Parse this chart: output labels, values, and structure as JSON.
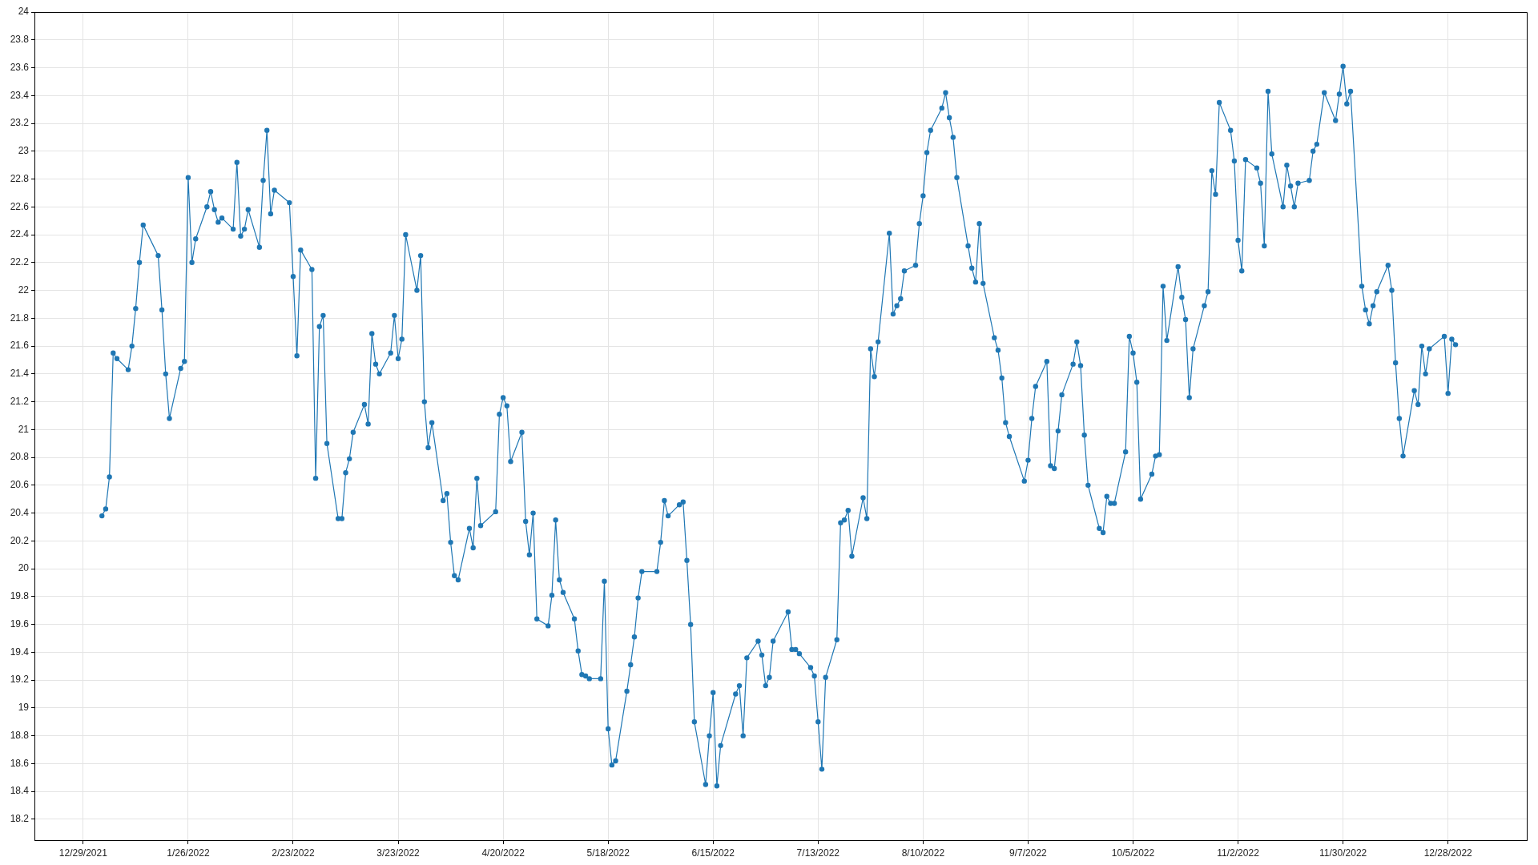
{
  "chart_data": {
    "type": "line",
    "marker": "circle",
    "grid": true,
    "color": "#1f77b4",
    "xlim": [
      "2021-12-16",
      "2023-01-18"
    ],
    "xticks": [
      {
        "value": "2021-12-29",
        "label": "12/29/2021"
      },
      {
        "value": "2022-01-26",
        "label": "1/26/2022"
      },
      {
        "value": "2022-02-23",
        "label": "2/23/2022"
      },
      {
        "value": "2022-03-23",
        "label": "3/23/2022"
      },
      {
        "value": "2022-04-20",
        "label": "4/20/2022"
      },
      {
        "value": "2022-05-18",
        "label": "5/18/2022"
      },
      {
        "value": "2022-06-15",
        "label": "6/15/2022"
      },
      {
        "value": "2022-07-13",
        "label": "7/13/2022"
      },
      {
        "value": "2022-08-10",
        "label": "8/10/2022"
      },
      {
        "value": "2022-09-07",
        "label": "9/7/2022"
      },
      {
        "value": "2022-10-05",
        "label": "10/5/2022"
      },
      {
        "value": "2022-11-02",
        "label": "11/2/2022"
      },
      {
        "value": "2022-11-30",
        "label": "11/30/2022"
      },
      {
        "value": "2022-12-28",
        "label": "12/28/2022"
      }
    ],
    "ylim": [
      18.05,
      24
    ],
    "yticks": [
      18.2,
      18.4,
      18.6,
      18.8,
      19,
      19.2,
      19.4,
      19.6,
      19.8,
      20,
      20.2,
      20.4,
      20.6,
      20.8,
      21,
      21.2,
      21.4,
      21.6,
      21.8,
      22,
      22.2,
      22.4,
      22.6,
      22.8,
      23,
      23.2,
      23.4,
      23.6,
      23.8,
      24
    ],
    "x": [
      "2022-01-03",
      "2022-01-04",
      "2022-01-05",
      "2022-01-06",
      "2022-01-07",
      "2022-01-10",
      "2022-01-11",
      "2022-01-12",
      "2022-01-13",
      "2022-01-14",
      "2022-01-18",
      "2022-01-19",
      "2022-01-20",
      "2022-01-21",
      "2022-01-24",
      "2022-01-25",
      "2022-01-26",
      "2022-01-27",
      "2022-01-28",
      "2022-01-31",
      "2022-02-01",
      "2022-02-02",
      "2022-02-03",
      "2022-02-04",
      "2022-02-07",
      "2022-02-08",
      "2022-02-09",
      "2022-02-10",
      "2022-02-11",
      "2022-02-14",
      "2022-02-15",
      "2022-02-16",
      "2022-02-17",
      "2022-02-18",
      "2022-02-22",
      "2022-02-23",
      "2022-02-24",
      "2022-02-25",
      "2022-02-28",
      "2022-03-01",
      "2022-03-02",
      "2022-03-03",
      "2022-03-04",
      "2022-03-07",
      "2022-03-08",
      "2022-03-09",
      "2022-03-10",
      "2022-03-11",
      "2022-03-14",
      "2022-03-15",
      "2022-03-16",
      "2022-03-17",
      "2022-03-18",
      "2022-03-21",
      "2022-03-22",
      "2022-03-23",
      "2022-03-24",
      "2022-03-25",
      "2022-03-28",
      "2022-03-29",
      "2022-03-30",
      "2022-03-31",
      "2022-04-01",
      "2022-04-04",
      "2022-04-05",
      "2022-04-06",
      "2022-04-07",
      "2022-04-08",
      "2022-04-11",
      "2022-04-12",
      "2022-04-13",
      "2022-04-14",
      "2022-04-18",
      "2022-04-19",
      "2022-04-20",
      "2022-04-21",
      "2022-04-22",
      "2022-04-25",
      "2022-04-26",
      "2022-04-27",
      "2022-04-28",
      "2022-04-29",
      "2022-05-02",
      "2022-05-03",
      "2022-05-04",
      "2022-05-05",
      "2022-05-06",
      "2022-05-09",
      "2022-05-10",
      "2022-05-11",
      "2022-05-12",
      "2022-05-13",
      "2022-05-16",
      "2022-05-17",
      "2022-05-18",
      "2022-05-19",
      "2022-05-20",
      "2022-05-23",
      "2022-05-24",
      "2022-05-25",
      "2022-05-26",
      "2022-05-27",
      "2022-05-31",
      "2022-06-01",
      "2022-06-02",
      "2022-06-03",
      "2022-06-06",
      "2022-06-07",
      "2022-06-08",
      "2022-06-09",
      "2022-06-10",
      "2022-06-13",
      "2022-06-14",
      "2022-06-15",
      "2022-06-16",
      "2022-06-17",
      "2022-06-21",
      "2022-06-22",
      "2022-06-23",
      "2022-06-24",
      "2022-06-27",
      "2022-06-28",
      "2022-06-29",
      "2022-06-30",
      "2022-07-01",
      "2022-07-05",
      "2022-07-06",
      "2022-07-07",
      "2022-07-08",
      "2022-07-11",
      "2022-07-12",
      "2022-07-13",
      "2022-07-14",
      "2022-07-15",
      "2022-07-18",
      "2022-07-19",
      "2022-07-20",
      "2022-07-21",
      "2022-07-22",
      "2022-07-25",
      "2022-07-26",
      "2022-07-27",
      "2022-07-28",
      "2022-07-29",
      "2022-08-01",
      "2022-08-02",
      "2022-08-03",
      "2022-08-04",
      "2022-08-05",
      "2022-08-08",
      "2022-08-09",
      "2022-08-10",
      "2022-08-11",
      "2022-08-12",
      "2022-08-15",
      "2022-08-16",
      "2022-08-17",
      "2022-08-18",
      "2022-08-19",
      "2022-08-22",
      "2022-08-23",
      "2022-08-24",
      "2022-08-25",
      "2022-08-26",
      "2022-08-29",
      "2022-08-30",
      "2022-08-31",
      "2022-09-01",
      "2022-09-02",
      "2022-09-06",
      "2022-09-07",
      "2022-09-08",
      "2022-09-09",
      "2022-09-12",
      "2022-09-13",
      "2022-09-14",
      "2022-09-15",
      "2022-09-16",
      "2022-09-19",
      "2022-09-20",
      "2022-09-21",
      "2022-09-22",
      "2022-09-23",
      "2022-09-26",
      "2022-09-27",
      "2022-09-28",
      "2022-09-29",
      "2022-09-30",
      "2022-10-03",
      "2022-10-04",
      "2022-10-05",
      "2022-10-06",
      "2022-10-07",
      "2022-10-10",
      "2022-10-11",
      "2022-10-12",
      "2022-10-13",
      "2022-10-14",
      "2022-10-17",
      "2022-10-18",
      "2022-10-19",
      "2022-10-20",
      "2022-10-21",
      "2022-10-24",
      "2022-10-25",
      "2022-10-26",
      "2022-10-27",
      "2022-10-28",
      "2022-10-31",
      "2022-11-01",
      "2022-11-02",
      "2022-11-03",
      "2022-11-04",
      "2022-11-07",
      "2022-11-08",
      "2022-11-09",
      "2022-11-10",
      "2022-11-11",
      "2022-11-14",
      "2022-11-15",
      "2022-11-16",
      "2022-11-17",
      "2022-11-18",
      "2022-11-21",
      "2022-11-22",
      "2022-11-23",
      "2022-11-25",
      "2022-11-28",
      "2022-11-29",
      "2022-11-30",
      "2022-12-01",
      "2022-12-02",
      "2022-12-05",
      "2022-12-06",
      "2022-12-07",
      "2022-12-08",
      "2022-12-09",
      "2022-12-12",
      "2022-12-13",
      "2022-12-14",
      "2022-12-15",
      "2022-12-16",
      "2022-12-19",
      "2022-12-20",
      "2022-12-21",
      "2022-12-22",
      "2022-12-23",
      "2022-12-27",
      "2022-12-28",
      "2022-12-29",
      "2022-12-30"
    ],
    "values": [
      20.38,
      20.43,
      20.66,
      21.55,
      21.51,
      21.43,
      21.6,
      21.87,
      22.2,
      22.47,
      22.25,
      21.86,
      21.4,
      21.08,
      21.44,
      21.49,
      22.81,
      22.2,
      22.37,
      22.6,
      22.71,
      22.58,
      22.49,
      22.52,
      22.44,
      22.92,
      22.39,
      22.44,
      22.58,
      22.31,
      22.79,
      23.15,
      22.55,
      22.72,
      22.63,
      22.1,
      21.53,
      22.29,
      22.15,
      20.65,
      21.74,
      21.82,
      20.9,
      20.36,
      20.36,
      20.69,
      20.79,
      20.98,
      21.18,
      21.04,
      21.69,
      21.47,
      21.4,
      21.55,
      21.82,
      21.51,
      21.65,
      22.4,
      22.0,
      22.25,
      21.2,
      20.87,
      21.05,
      20.49,
      20.54,
      20.19,
      19.95,
      19.92,
      20.29,
      20.15,
      20.65,
      20.31,
      20.41,
      21.11,
      21.23,
      21.17,
      20.77,
      20.98,
      20.34,
      20.1,
      20.4,
      19.64,
      19.59,
      19.81,
      20.35,
      19.92,
      19.83,
      19.64,
      19.41,
      19.24,
      19.23,
      19.21,
      19.21,
      19.91,
      18.85,
      18.59,
      18.62,
      19.12,
      19.31,
      19.51,
      19.79,
      19.98,
      19.98,
      20.19,
      20.49,
      20.38,
      20.46,
      20.48,
      20.06,
      19.6,
      18.9,
      18.45,
      18.8,
      19.11,
      18.44,
      18.73,
      19.1,
      19.16,
      18.8,
      19.36,
      19.48,
      19.38,
      19.16,
      19.22,
      19.48,
      19.69,
      19.42,
      19.42,
      19.39,
      19.29,
      19.23,
      18.9,
      18.56,
      19.22,
      19.49,
      20.33,
      20.35,
      20.42,
      20.09,
      20.51,
      20.36,
      21.58,
      21.38,
      21.63,
      22.41,
      21.83,
      21.89,
      21.94,
      22.14,
      22.18,
      22.48,
      22.68,
      22.99,
      23.15,
      23.31,
      23.42,
      23.24,
      23.1,
      22.81,
      22.32,
      22.16,
      22.06,
      22.48,
      22.05,
      21.66,
      21.57,
      21.37,
      21.05,
      20.95,
      20.63,
      20.78,
      21.08,
      21.31,
      21.49,
      20.74,
      20.72,
      20.99,
      21.25,
      21.47,
      21.63,
      21.46,
      20.96,
      20.6,
      20.29,
      20.26,
      20.52,
      20.47,
      20.47,
      20.84,
      21.67,
      21.55,
      21.34,
      20.5,
      20.68,
      20.81,
      20.82,
      22.03,
      21.64,
      22.17,
      21.95,
      21.79,
      21.23,
      21.58,
      21.89,
      21.99,
      22.86,
      22.69,
      23.35,
      23.15,
      22.93,
      22.36,
      22.14,
      22.94,
      22.88,
      22.77,
      22.32,
      23.43,
      22.98,
      22.6,
      22.9,
      22.75,
      22.6,
      22.77,
      22.79,
      23.0,
      23.05,
      23.42,
      23.22,
      23.41,
      23.61,
      23.34,
      23.43,
      22.03,
      21.86,
      21.76,
      21.89,
      21.99,
      22.18,
      22.0,
      21.48,
      21.08,
      20.81,
      21.28,
      21.18,
      21.6,
      21.4,
      21.58,
      21.67,
      21.26,
      21.65,
      21.61
    ]
  }
}
